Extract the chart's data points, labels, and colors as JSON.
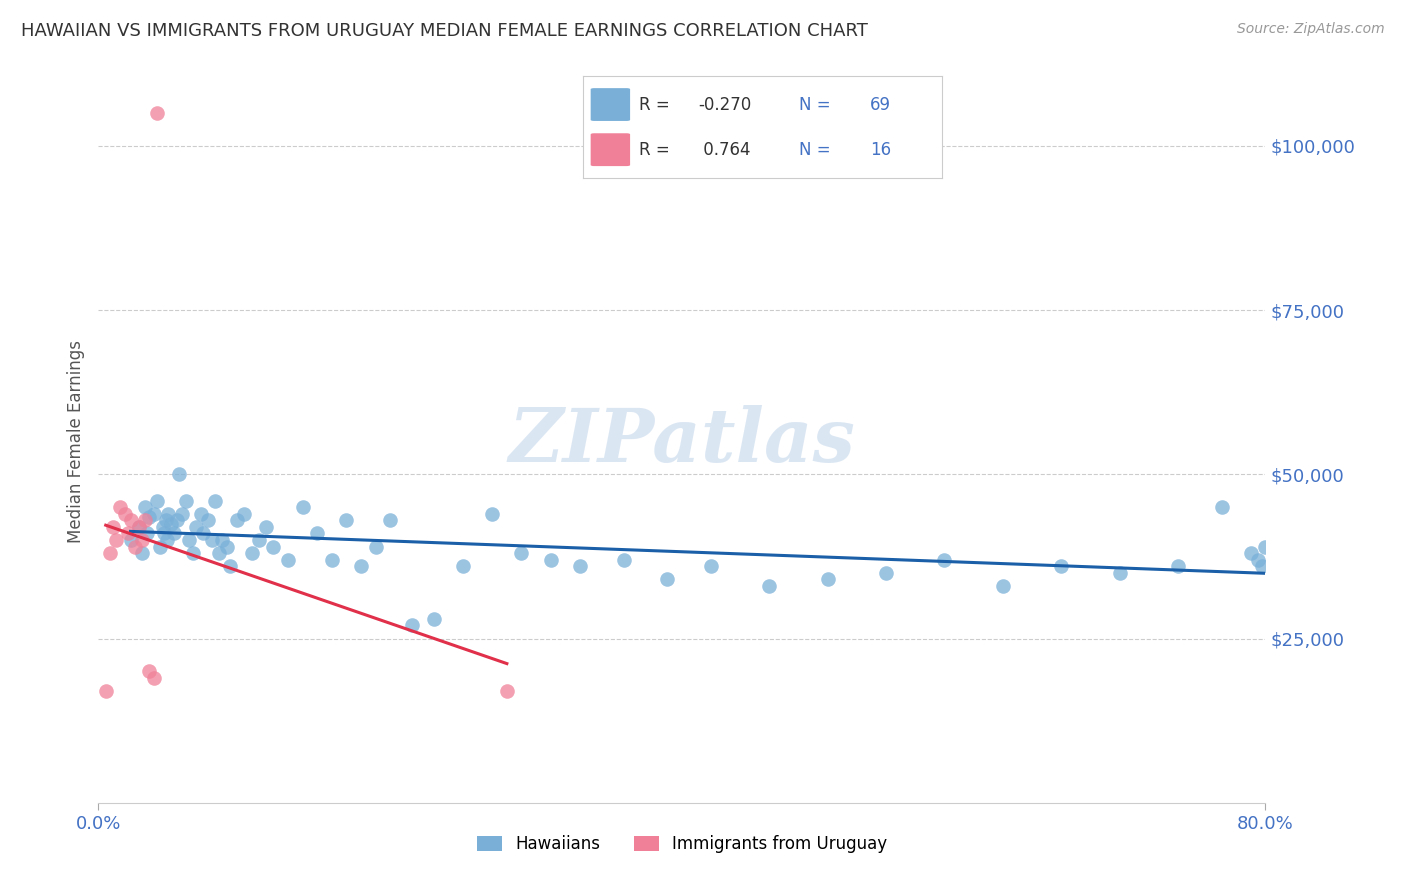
{
  "title": "HAWAIIAN VS IMMIGRANTS FROM URUGUAY MEDIAN FEMALE EARNINGS CORRELATION CHART",
  "source": "Source: ZipAtlas.com",
  "ylabel": "Median Female Earnings",
  "watermark": "ZIPatlas",
  "xlim": [
    0.0,
    0.8
  ],
  "ylim": [
    0,
    110000
  ],
  "yticks": [
    25000,
    50000,
    75000,
    100000
  ],
  "ytick_labels": [
    "$25,000",
    "$50,000",
    "$75,000",
    "$100,000"
  ],
  "hawaiians_color": "#7ab0d8",
  "uruguay_color": "#f08098",
  "trend_hawaiians_color": "#1a5fa8",
  "trend_uruguay_color": "#e0304a",
  "background_color": "#ffffff",
  "grid_color": "#cccccc",
  "title_color": "#333333",
  "axis_label_color": "#555555",
  "ytick_color": "#4472c4",
  "xtick_color": "#4472c4",
  "legend_R_hawaii": "-0.270",
  "legend_N_hawaii": "69",
  "legend_R_uruguay": " 0.764",
  "legend_N_uruguay": "16",
  "hawaiians_x": [
    0.022,
    0.028,
    0.03,
    0.032,
    0.033,
    0.035,
    0.038,
    0.04,
    0.042,
    0.044,
    0.045,
    0.046,
    0.047,
    0.048,
    0.05,
    0.052,
    0.054,
    0.055,
    0.057,
    0.06,
    0.062,
    0.065,
    0.067,
    0.07,
    0.072,
    0.075,
    0.078,
    0.08,
    0.083,
    0.085,
    0.088,
    0.09,
    0.095,
    0.1,
    0.105,
    0.11,
    0.115,
    0.12,
    0.13,
    0.14,
    0.15,
    0.16,
    0.17,
    0.18,
    0.19,
    0.2,
    0.215,
    0.23,
    0.25,
    0.27,
    0.29,
    0.31,
    0.33,
    0.36,
    0.39,
    0.42,
    0.46,
    0.5,
    0.54,
    0.58,
    0.62,
    0.66,
    0.7,
    0.74,
    0.77,
    0.79,
    0.795,
    0.798,
    0.8
  ],
  "hawaiians_y": [
    40000,
    42000,
    38000,
    45000,
    41000,
    43500,
    44000,
    46000,
    39000,
    42000,
    41000,
    43000,
    40000,
    44000,
    42500,
    41000,
    43000,
    50000,
    44000,
    46000,
    40000,
    38000,
    42000,
    44000,
    41000,
    43000,
    40000,
    46000,
    38000,
    40000,
    39000,
    36000,
    43000,
    44000,
    38000,
    40000,
    42000,
    39000,
    37000,
    45000,
    41000,
    37000,
    43000,
    36000,
    39000,
    43000,
    27000,
    28000,
    36000,
    44000,
    38000,
    37000,
    36000,
    37000,
    34000,
    36000,
    33000,
    34000,
    35000,
    37000,
    33000,
    36000,
    35000,
    36000,
    45000,
    38000,
    37000,
    36000,
    39000
  ],
  "uruguay_x": [
    0.005,
    0.008,
    0.01,
    0.012,
    0.015,
    0.018,
    0.02,
    0.022,
    0.025,
    0.028,
    0.03,
    0.032,
    0.035,
    0.038,
    0.04,
    0.28
  ],
  "uruguay_y": [
    17000,
    38000,
    42000,
    40000,
    45000,
    44000,
    41000,
    43000,
    39000,
    42000,
    40000,
    43000,
    20000,
    19000,
    105000,
    17000
  ]
}
